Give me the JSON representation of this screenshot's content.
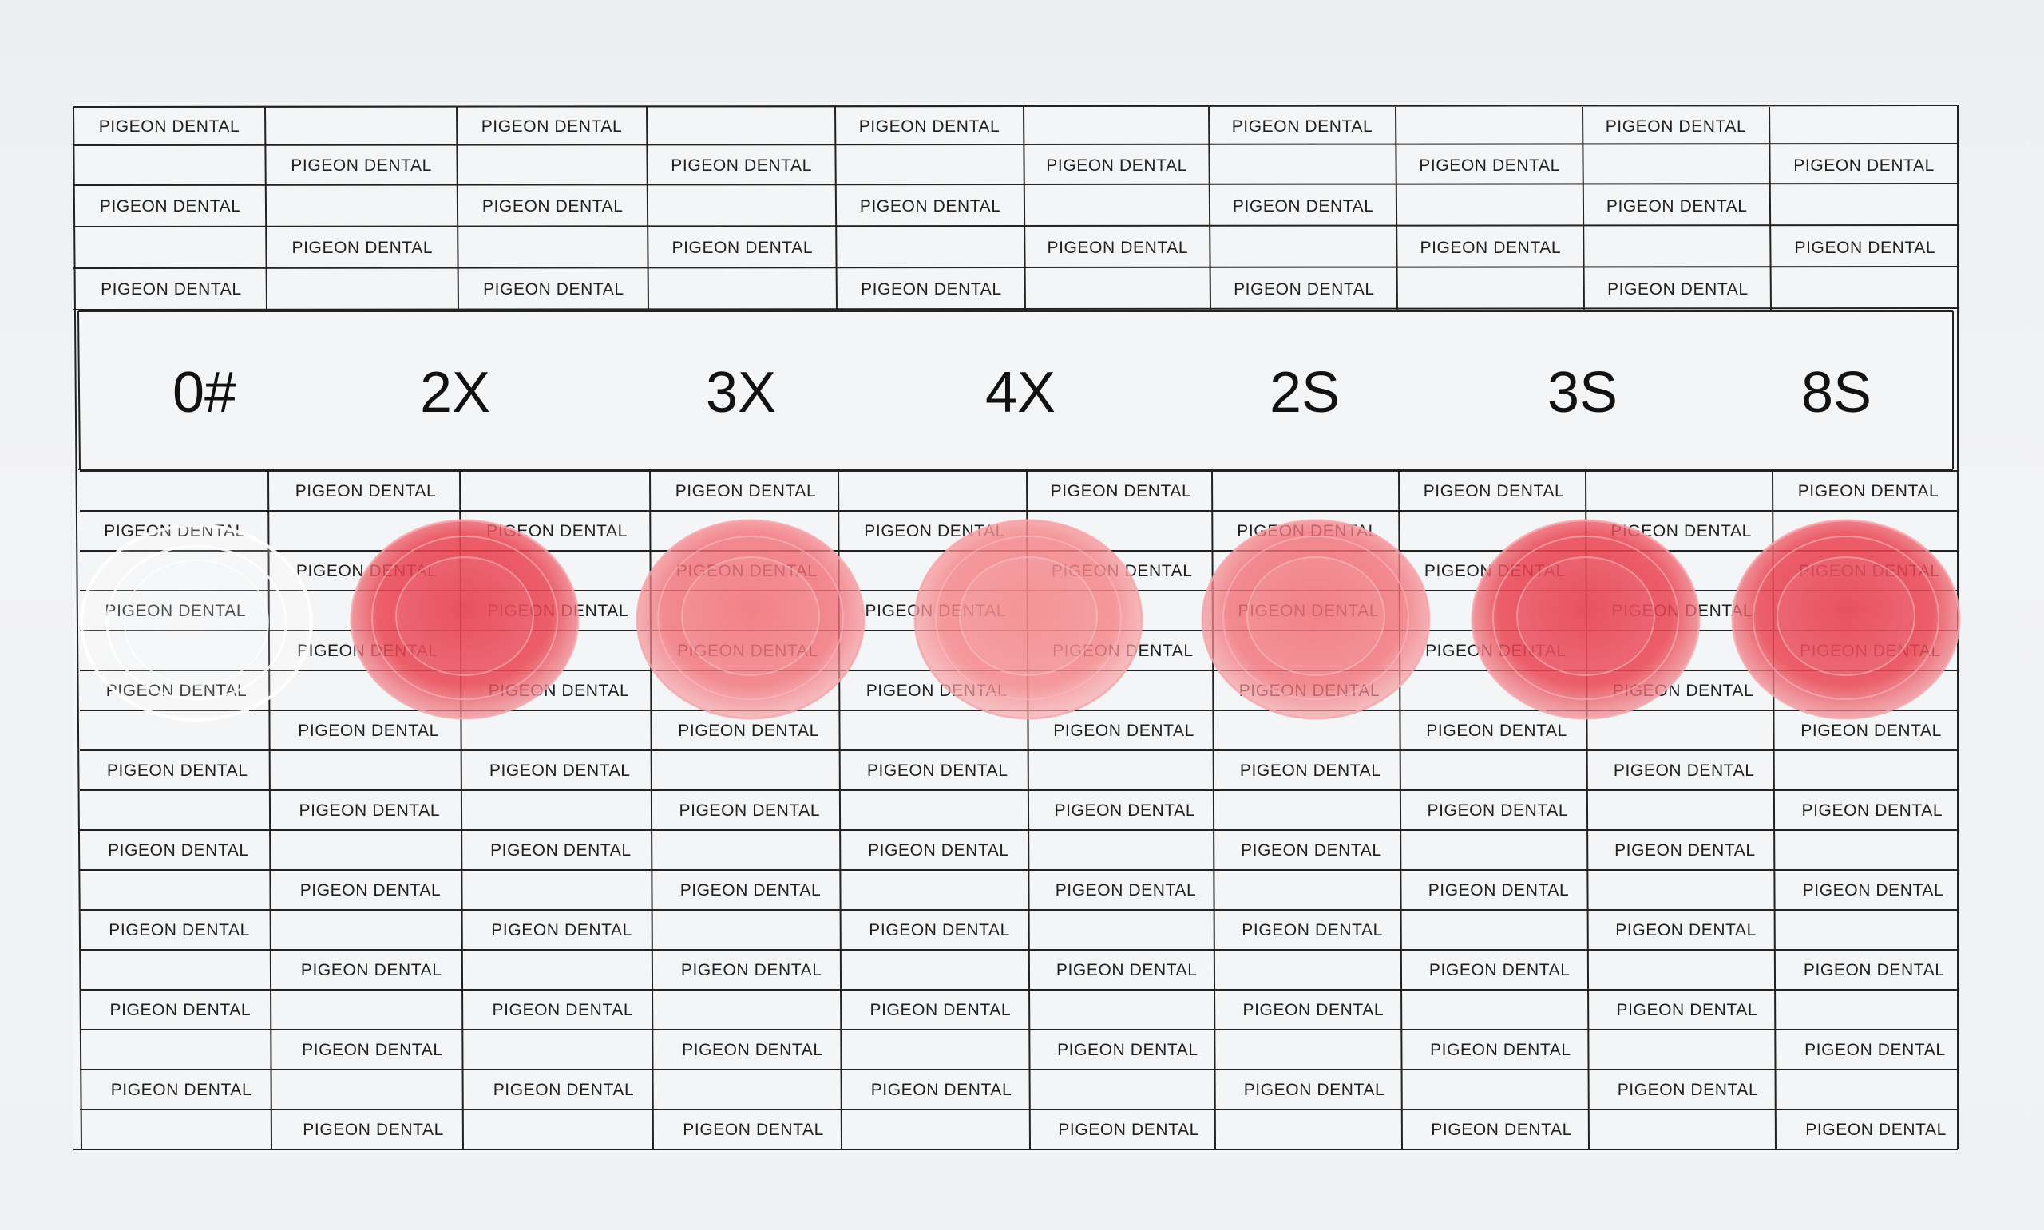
{
  "brand_text": "PIGEON DENTAL",
  "shades": [
    "0#",
    "2X",
    "3X",
    "4X",
    "2S",
    "3S",
    "8S"
  ],
  "colors": {
    "background": "#eef0f3",
    "grid_line": "#222222",
    "text": "#202020",
    "disc_clear": "#ffffff",
    "disc_red_deep": "#e83c4c",
    "disc_red_mid": "#f0606a",
    "disc_red_light": "#f37a80"
  },
  "discs": [
    {
      "shade": "0#",
      "tint": "clear"
    },
    {
      "shade": "2X",
      "tint": "deep"
    },
    {
      "shade": "3X",
      "tint": "mid"
    },
    {
      "shade": "4X",
      "tint": "light"
    },
    {
      "shade": "2S",
      "tint": "mid"
    },
    {
      "shade": "3S",
      "tint": "deep"
    },
    {
      "shade": "8S",
      "tint": "deep"
    }
  ]
}
